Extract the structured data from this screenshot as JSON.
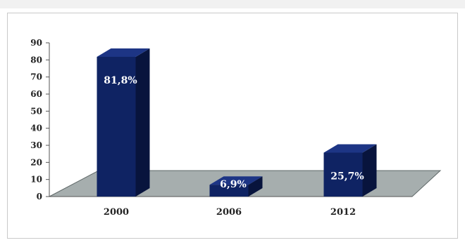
{
  "chart_data": {
    "type": "bar",
    "categories": [
      "2000",
      "2006",
      "2012"
    ],
    "values": [
      81.8,
      6.9,
      25.7
    ],
    "data_labels": [
      "81,8%",
      "6,9%",
      "25,7%"
    ],
    "title": "",
    "xlabel": "",
    "ylabel": "",
    "ylim": [
      0,
      90
    ],
    "yticks": [
      "0",
      "10",
      "20",
      "30",
      "40",
      "50",
      "60",
      "70",
      "80",
      "90"
    ],
    "style_3d": true,
    "grid": false,
    "legend": "none",
    "colors": {
      "bar": "#0f2363",
      "bar_side": "#08143d",
      "bar_top": "#1d3585",
      "floor": "#a6aeae",
      "floor_edge": "#5f6868"
    }
  }
}
